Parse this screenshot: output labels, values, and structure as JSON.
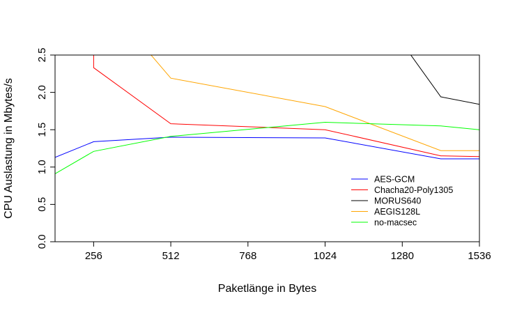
{
  "chart_data": {
    "type": "line",
    "title": "",
    "xlabel": "Paketlänge in Bytes",
    "ylabel": "CPU Auslastung in Mbytes/s",
    "xlim": [
      128,
      1536
    ],
    "ylim": [
      0,
      2.5
    ],
    "xticks": [
      256,
      512,
      768,
      1024,
      1280,
      1536
    ],
    "xtick_labels": [
      "256",
      "512",
      "768",
      "1024",
      "1280",
      "1536"
    ],
    "yticks": [
      0,
      0.5,
      1,
      1.5,
      2,
      2.5
    ],
    "ytick_labels": [
      "0.0",
      "0.5",
      "1.0",
      "1.5",
      "2.0",
      "2.5"
    ],
    "grid": false,
    "legend_position": "bottom-right",
    "series": [
      {
        "name": "AES-GCM",
        "color": "#0000ff",
        "x": [
          128,
          256,
          512,
          1024,
          1408,
          1536
        ],
        "y": [
          1.13,
          1.34,
          1.4,
          1.39,
          1.11,
          1.11
        ]
      },
      {
        "name": "Chacha20-Poly1305",
        "color": "#ff0000",
        "x": [
          256,
          256,
          512,
          1024,
          1408,
          1536
        ],
        "y": [
          3.4,
          2.33,
          1.58,
          1.5,
          1.15,
          1.14
        ]
      },
      {
        "name": "MORUS640",
        "color": "#000000",
        "x": [
          1024,
          1408,
          1536
        ],
        "y": [
          4.1,
          1.94,
          1.84
        ]
      },
      {
        "name": "AEGIS128L",
        "color": "#ffa500",
        "x": [
          256,
          512,
          1024,
          1408,
          1536
        ],
        "y": [
          3.4,
          2.19,
          1.81,
          1.22,
          1.22
        ]
      },
      {
        "name": "no-macsec",
        "color": "#00ff00",
        "x": [
          128,
          256,
          512,
          1024,
          1408,
          1536
        ],
        "y": [
          0.91,
          1.21,
          1.41,
          1.6,
          1.55,
          1.5
        ]
      }
    ]
  }
}
